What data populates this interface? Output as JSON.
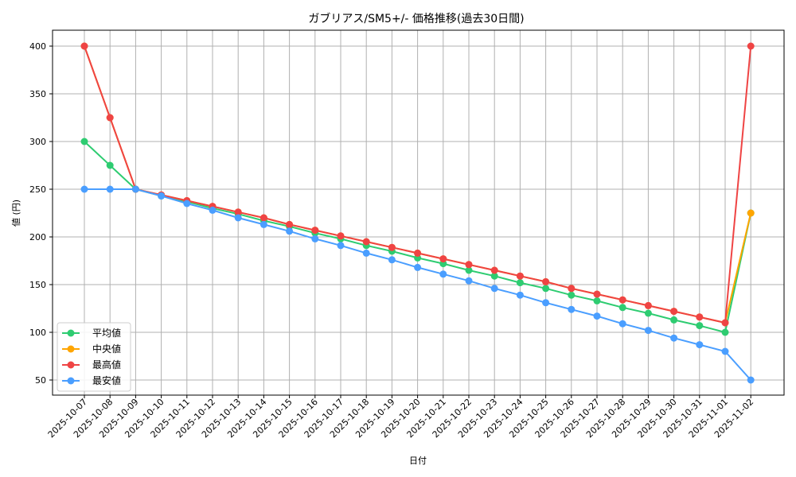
{
  "chart_data": {
    "type": "line",
    "title": "ガブリアス/SM5+/- 価格推移(過去30日間)",
    "xlabel": "日付",
    "ylabel": "値 (円)",
    "ylim": [
      33,
      415
    ],
    "yticks": [
      50,
      100,
      150,
      200,
      250,
      300,
      350,
      400
    ],
    "grid": true,
    "legend_position": "lower left",
    "categories": [
      "2025-10-07",
      "2025-10-08",
      "2025-10-09",
      "2025-10-10",
      "2025-10-11",
      "2025-10-12",
      "2025-10-13",
      "2025-10-14",
      "2025-10-15",
      "2025-10-16",
      "2025-10-17",
      "2025-10-18",
      "2025-10-19",
      "2025-10-20",
      "2025-10-21",
      "2025-10-22",
      "2025-10-23",
      "2025-10-24",
      "2025-10-25",
      "2025-10-26",
      "2025-10-27",
      "2025-10-28",
      "2025-10-29",
      "2025-10-30",
      "2025-10-31",
      "2025-11-01",
      "2025-11-02"
    ],
    "series": [
      {
        "name": "平均値",
        "color": "#2ecc71",
        "values": [
          300,
          275,
          250,
          243,
          237,
          230,
          224,
          217,
          211,
          204,
          198,
          191,
          185,
          178,
          172,
          165,
          159,
          152,
          146,
          139,
          133,
          126,
          120,
          113,
          107,
          100,
          225
        ]
      },
      {
        "name": "中央値",
        "color": "#ffa500",
        "values": [
          400,
          325,
          250,
          244,
          238,
          232,
          226,
          220,
          213,
          207,
          201,
          195,
          189,
          183,
          177,
          171,
          165,
          159,
          153,
          146,
          140,
          134,
          128,
          122,
          116,
          110,
          225
        ]
      },
      {
        "name": "最高値",
        "color": "#ef4444",
        "values": [
          400,
          325,
          250,
          244,
          238,
          232,
          226,
          220,
          213,
          207,
          201,
          195,
          189,
          183,
          177,
          171,
          165,
          159,
          153,
          146,
          140,
          134,
          128,
          122,
          116,
          110,
          400
        ]
      },
      {
        "name": "最安値",
        "color": "#4a9eff",
        "values": [
          250,
          250,
          250,
          243,
          235,
          228,
          220,
          213,
          206,
          198,
          191,
          183,
          176,
          168,
          161,
          154,
          146,
          139,
          131,
          124,
          117,
          109,
          102,
          94,
          87,
          80,
          50
        ]
      }
    ]
  }
}
